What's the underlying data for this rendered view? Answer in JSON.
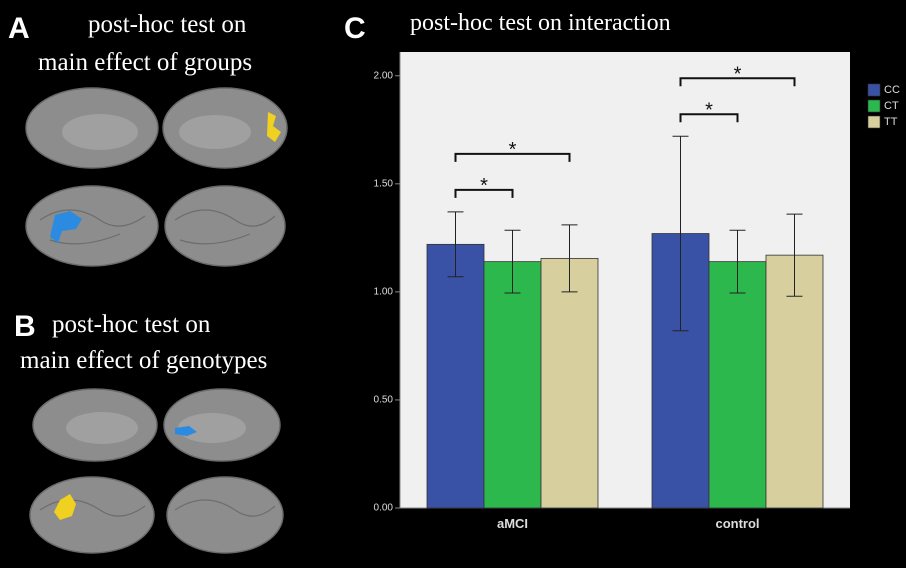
{
  "panel_a": {
    "label": "A",
    "title_lines": [
      "post-hoc test on",
      "main effect of groups"
    ]
  },
  "panel_b": {
    "label": "B",
    "title_lines": [
      "post-hoc test on",
      "main effect of genotypes"
    ]
  },
  "chart_data": {
    "type": "bar",
    "panel_label": "C",
    "title": "post-hoc test on interaction",
    "categories": [
      "aMCI",
      "control"
    ],
    "series": [
      {
        "name": "CC",
        "color": "#3a52a6",
        "values": [
          1.22,
          1.27
        ],
        "errors": [
          0.15,
          0.45
        ]
      },
      {
        "name": "CT",
        "color": "#2cb84c",
        "values": [
          1.14,
          1.14
        ],
        "errors": [
          0.145,
          0.145
        ]
      },
      {
        "name": "TT",
        "color": "#d8cf9e",
        "values": [
          1.155,
          1.17
        ],
        "errors": [
          0.155,
          0.19
        ]
      }
    ],
    "brackets": [
      {
        "category": "aMCI",
        "between": [
          "CC",
          "CT"
        ],
        "label": "*"
      },
      {
        "category": "aMCI",
        "between": [
          "CC",
          "TT"
        ],
        "label": "*"
      },
      {
        "category": "control",
        "between": [
          "CC",
          "CT"
        ],
        "label": "*"
      },
      {
        "category": "control",
        "between": [
          "CC",
          "TT"
        ],
        "label": "*"
      }
    ],
    "ylim": [
      0,
      2.11
    ],
    "yticks": [
      {
        "value": 0,
        "label": "0.00"
      },
      {
        "value": 0.5,
        "label": "0.50"
      },
      {
        "value": 1,
        "label": "1.00"
      },
      {
        "value": 1.5,
        "label": "1.50"
      },
      {
        "value": 2,
        "label": "2.00"
      }
    ],
    "legend": "right"
  }
}
